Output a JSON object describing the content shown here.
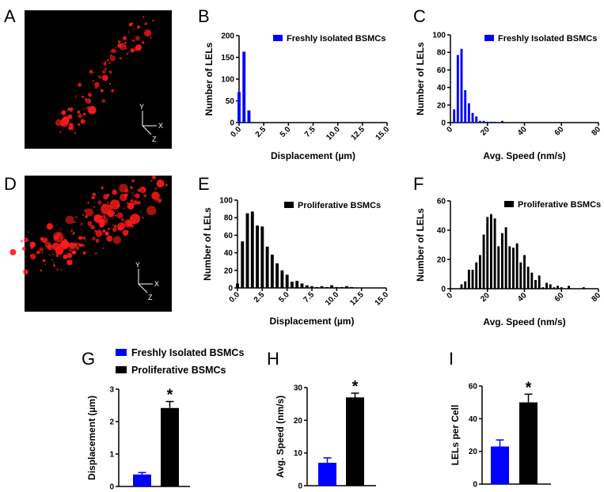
{
  "panel_labels": {
    "A": "A",
    "B": "B",
    "C": "C",
    "D": "D",
    "E": "E",
    "F": "F",
    "G": "G",
    "H": "H",
    "I": "I"
  },
  "micrograph_axes": {
    "y": "Y",
    "x": "X",
    "z": "Z"
  },
  "colors": {
    "freshly": "#0000ff",
    "proliferative": "#000000",
    "signal": "#ff1a1a"
  },
  "legend_g": {
    "freshly": "Freshly Isolated BSMCs",
    "proliferative": "Proliferative BSMCs"
  },
  "chart_data": [
    {
      "id": "B",
      "type": "bar",
      "legend": "Freshly Isolated BSMCs",
      "color": "#0000ff",
      "xlabel": "Displacement (µm)",
      "ylabel": "Number of LELs",
      "xlim": [
        0,
        15
      ],
      "ylim": [
        0,
        200
      ],
      "bin_width": 0.5,
      "xticks": [
        "0.0",
        "2.5",
        "5.0",
        "7.5",
        "10.0",
        "12.5",
        "15.0"
      ],
      "yticks": [
        "0",
        "50",
        "100",
        "150",
        "200"
      ],
      "x": [
        0,
        0.5,
        1.0
      ],
      "values": [
        70,
        163,
        28
      ]
    },
    {
      "id": "C",
      "type": "bar",
      "legend": "Freshly Isolated BSMCs",
      "color": "#0000ff",
      "xlabel": "Avg. Speed (nm/s)",
      "ylabel": "Number of LELs",
      "xlim": [
        0,
        80
      ],
      "ylim": [
        0,
        100
      ],
      "bin_width": 2,
      "xticks": [
        "0",
        "20",
        "40",
        "60",
        "80"
      ],
      "yticks": [
        "0",
        "20",
        "40",
        "60",
        "80",
        "100"
      ],
      "x": [
        2,
        4,
        6,
        8,
        10,
        12,
        14,
        16,
        18,
        20,
        22,
        24,
        28
      ],
      "values": [
        15,
        77,
        84,
        37,
        22,
        11,
        7,
        2,
        2,
        1,
        1,
        1,
        2
      ]
    },
    {
      "id": "E",
      "type": "bar",
      "legend": "Proliferative BSMCs",
      "color": "#000000",
      "xlabel": "Displacement (µm)",
      "ylabel": "Number of LELs",
      "xlim": [
        0,
        15
      ],
      "ylim": [
        0,
        100
      ],
      "bin_width": 0.5,
      "xticks": [
        "0.0",
        "2.5",
        "5.0",
        "7.5",
        "10.0",
        "12.5",
        "15.0"
      ],
      "yticks": [
        "0",
        "20",
        "40",
        "60",
        "80",
        "100"
      ],
      "x": [
        0,
        0.5,
        1,
        1.5,
        2,
        2.5,
        3,
        3.5,
        4,
        4.5,
        5,
        5.5,
        6,
        6.5,
        7,
        7.5,
        8,
        8.5,
        9,
        9.5,
        10,
        10.5,
        11,
        11.5
      ],
      "values": [
        5,
        53,
        85,
        87,
        71,
        70,
        47,
        38,
        28,
        20,
        15,
        7,
        8,
        5,
        3,
        2,
        1,
        2,
        1,
        3,
        1,
        1,
        2,
        1
      ]
    },
    {
      "id": "F",
      "type": "bar",
      "legend": "Proliferative BSMCs",
      "color": "#000000",
      "xlabel": "Avg. Speed (nm/s)",
      "ylabel": "Number of LELs",
      "xlim": [
        0,
        80
      ],
      "ylim": [
        0,
        60
      ],
      "bin_width": 2,
      "xticks": [
        "0",
        "20",
        "40",
        "60",
        "80"
      ],
      "yticks": [
        "0",
        "20",
        "40",
        "60"
      ],
      "x": [
        6,
        8,
        10,
        12,
        14,
        16,
        18,
        20,
        22,
        24,
        26,
        28,
        30,
        32,
        34,
        36,
        38,
        40,
        42,
        44,
        46,
        48,
        50,
        52,
        54,
        56,
        58,
        60,
        64,
        72
      ],
      "values": [
        3,
        5,
        13,
        13,
        18,
        23,
        37,
        49,
        51,
        48,
        29,
        38,
        42,
        29,
        28,
        31,
        18,
        23,
        15,
        11,
        6,
        9,
        1,
        4,
        3,
        1,
        2,
        1,
        2,
        1
      ]
    },
    {
      "id": "G",
      "type": "bar",
      "ylabel": "Displacement (µm)",
      "ylim": [
        0,
        3
      ],
      "yticks": [
        "0",
        "1",
        "2",
        "3"
      ],
      "categories": [
        "Freshly Isolated BSMCs",
        "Proliferative BSMCs"
      ],
      "values": [
        0.37,
        2.42
      ],
      "errors": [
        0.06,
        0.2
      ],
      "colors": [
        "#0000ff",
        "#000000"
      ],
      "significance": "*"
    },
    {
      "id": "H",
      "type": "bar",
      "ylabel": "Avg. Speed (nm/s)",
      "ylim": [
        0,
        30
      ],
      "yticks": [
        "0",
        "10",
        "20",
        "30"
      ],
      "categories": [
        "Freshly Isolated BSMCs",
        "Proliferative BSMCs"
      ],
      "values": [
        7.0,
        27.0
      ],
      "errors": [
        1.5,
        1.3
      ],
      "colors": [
        "#0000ff",
        "#000000"
      ],
      "significance": "*"
    },
    {
      "id": "I",
      "type": "bar",
      "ylabel": "LELs per Cell",
      "ylim": [
        0,
        60
      ],
      "yticks": [
        "0",
        "20",
        "40",
        "60"
      ],
      "categories": [
        "Freshly Isolated BSMCs",
        "Proliferative BSMCs"
      ],
      "values": [
        23,
        50
      ],
      "errors": [
        4,
        5
      ],
      "colors": [
        "#0000ff",
        "#000000"
      ],
      "significance": "*"
    }
  ]
}
